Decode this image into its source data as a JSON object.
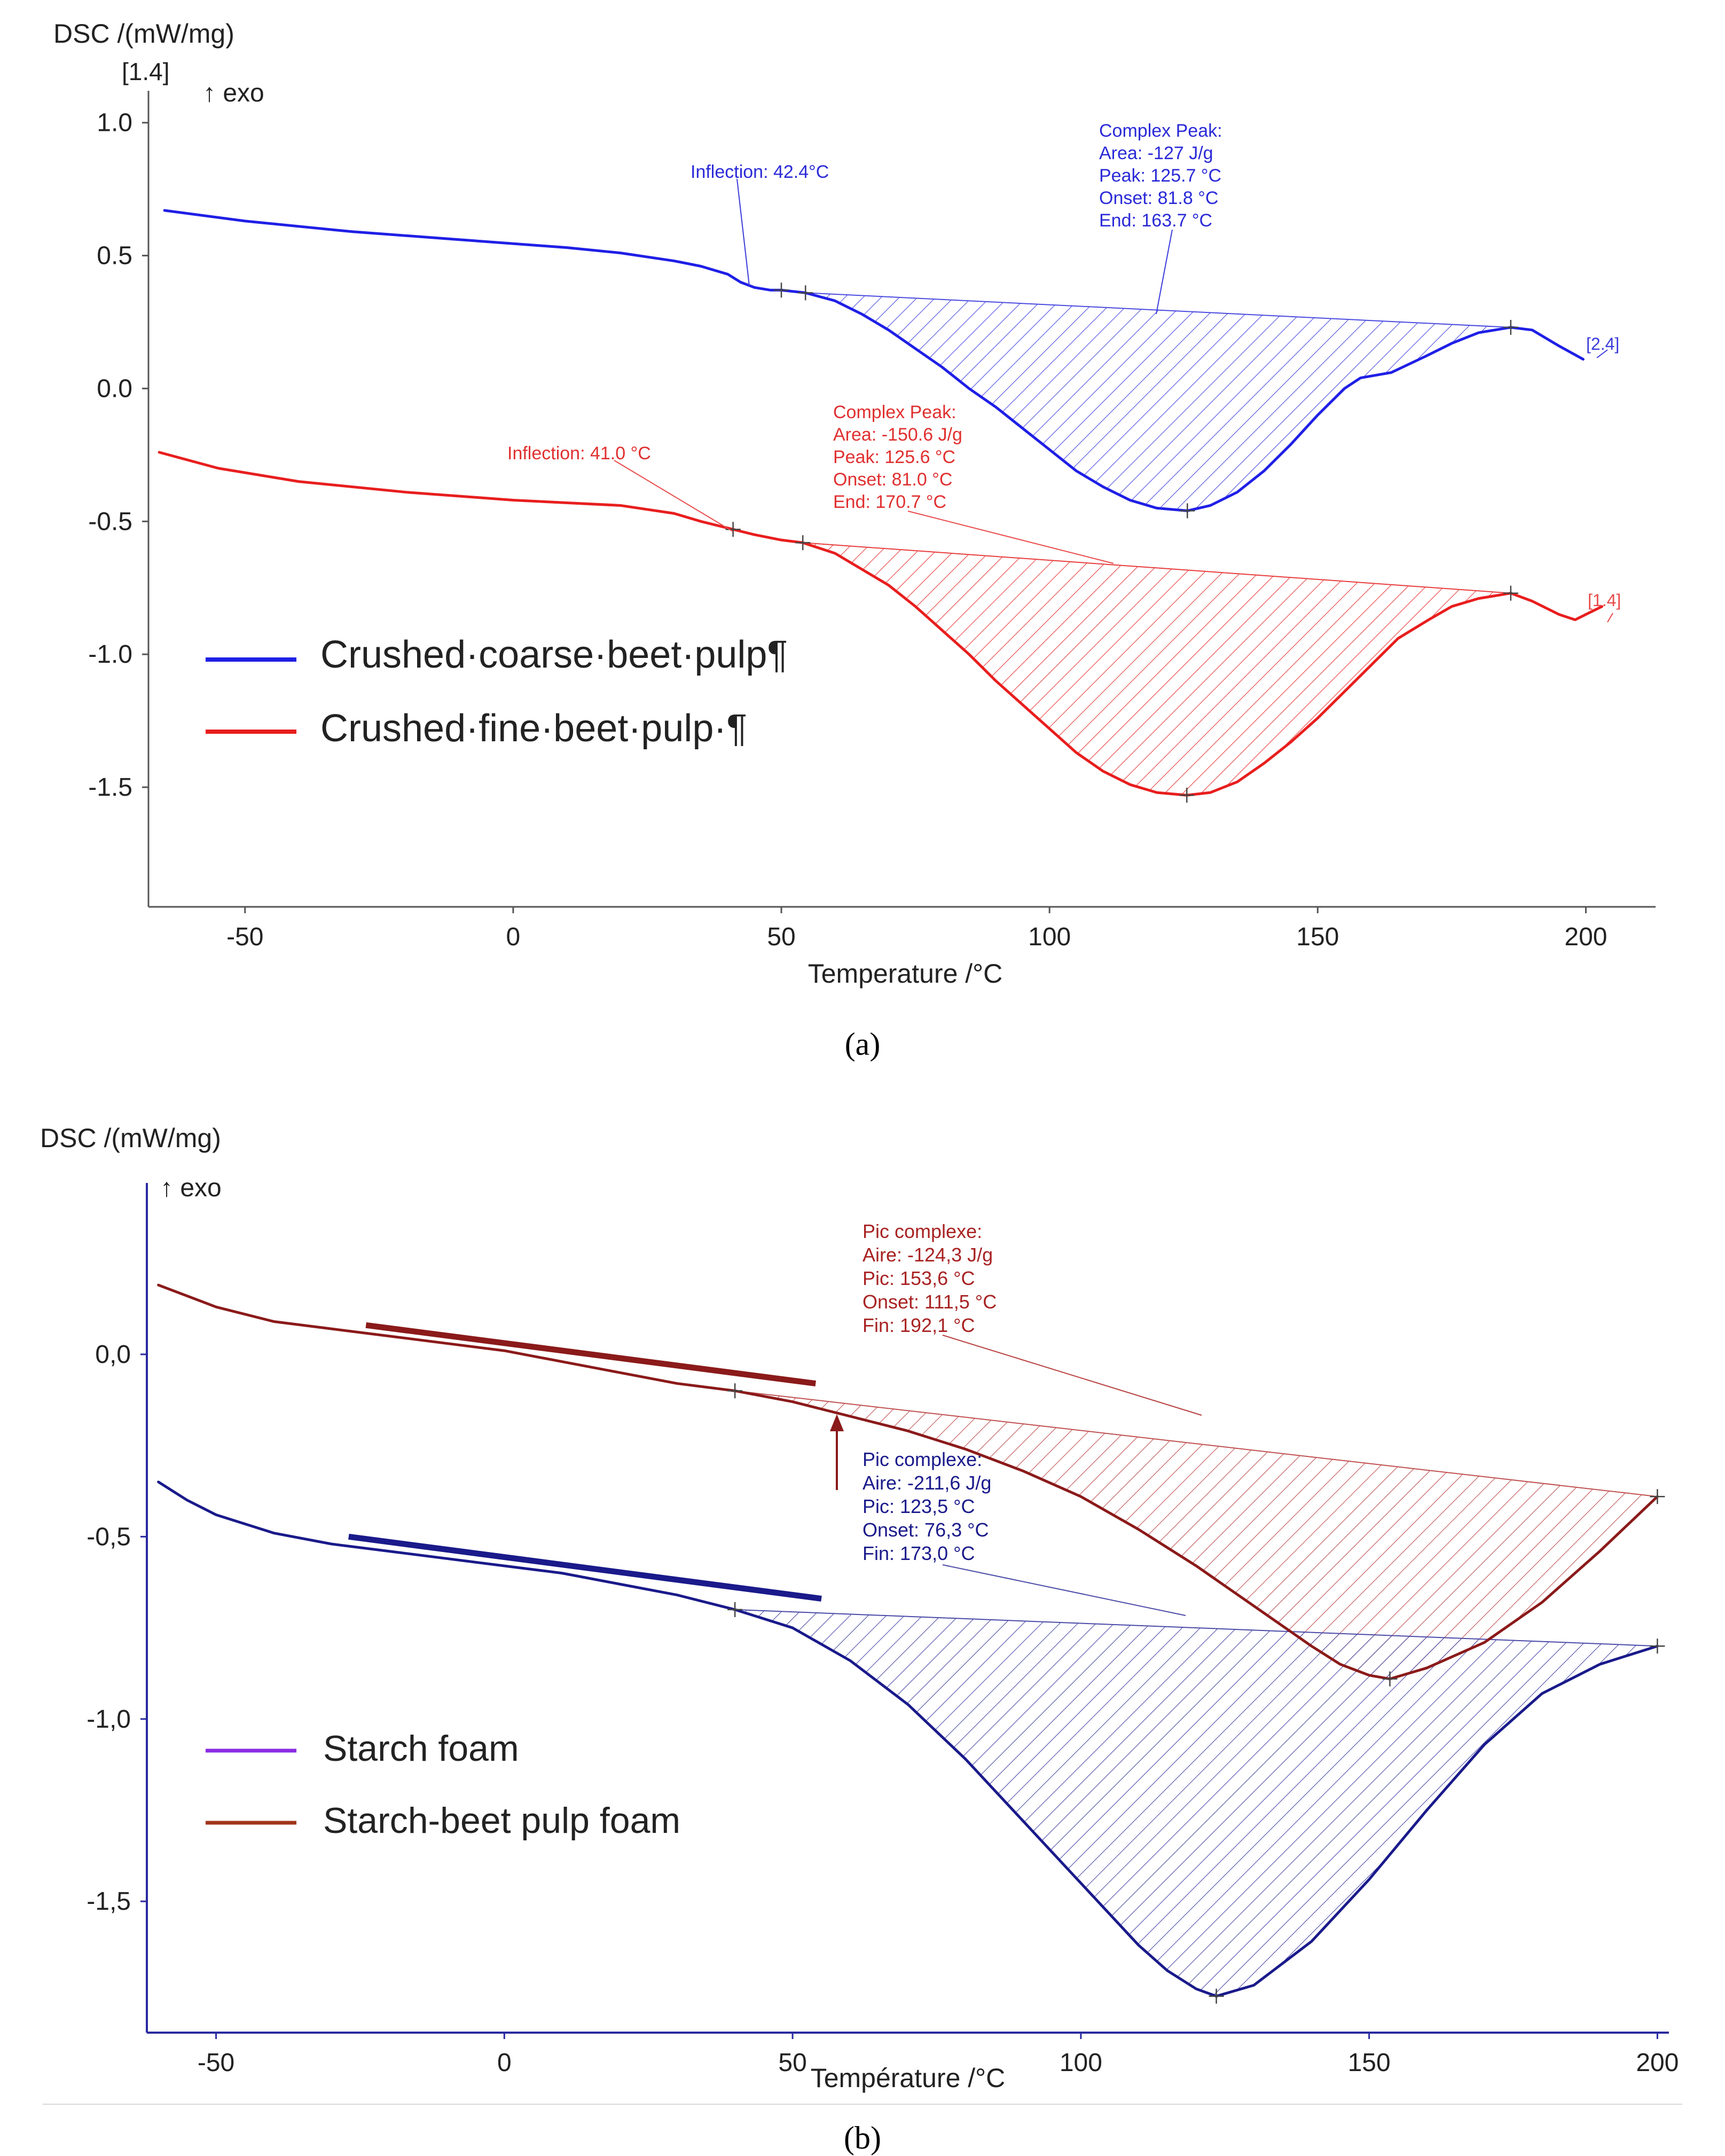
{
  "chart_data": [
    {
      "id": "a",
      "type": "line",
      "panel_label": "(a)",
      "ylabel": "DSC /(mW/mg)",
      "ylabel_sub": "[1.4]",
      "exo_label": "↑ exo",
      "xlabel": "Temperature /°C",
      "xlim": [
        -68,
        213
      ],
      "ylim": [
        -1.95,
        1.12
      ],
      "x_ticks": [
        -50,
        0,
        50,
        100,
        150,
        200
      ],
      "x_tick_labels": [
        "-50",
        "0",
        "50",
        "100",
        "150",
        "200"
      ],
      "y_ticks": [
        1.0,
        0.5,
        0.0,
        -0.5,
        -1.0,
        -1.5
      ],
      "y_tick_labels": [
        "1.0",
        "0.5",
        "0.0",
        "-0.5",
        "-1.0",
        "-1.5"
      ],
      "legend": {
        "position": "bottom-left",
        "entries": [
          "Crushed·coarse·beet·pulp¶",
          "Crushed·fine·beet·pulp·¶"
        ]
      },
      "series": [
        {
          "name": "Crushed coarse beet pulp",
          "color": "#1f1fe6",
          "hatch_color": "#4a4ae0",
          "segment_label": "[2.4]",
          "x": [
            -65,
            -50,
            -30,
            -10,
            10,
            20,
            30,
            35,
            40,
            42.4,
            45,
            48,
            50,
            54.5,
            60,
            65,
            70,
            75,
            80,
            85,
            90,
            95,
            100,
            105,
            110,
            115,
            120,
            125.7,
            130,
            135,
            140,
            145,
            150,
            155,
            158,
            163.7,
            170,
            175,
            180,
            186,
            190,
            195,
            199.5
          ],
          "y": [
            0.67,
            0.63,
            0.59,
            0.56,
            0.53,
            0.51,
            0.48,
            0.46,
            0.43,
            0.4,
            0.38,
            0.37,
            0.37,
            0.36,
            0.33,
            0.28,
            0.22,
            0.15,
            0.08,
            0.0,
            -0.07,
            -0.15,
            -0.23,
            -0.31,
            -0.37,
            -0.42,
            -0.45,
            -0.46,
            -0.44,
            -0.39,
            -0.31,
            -0.21,
            -0.1,
            0.0,
            0.04,
            0.06,
            0.12,
            0.17,
            0.21,
            0.23,
            0.22,
            0.16,
            0.11
          ],
          "baseline": {
            "x": [
              54.5,
              186
            ],
            "y": [
              0.36,
              0.23
            ]
          },
          "markers": [
            {
              "x": 50,
              "y": 0.37
            },
            {
              "x": 54.5,
              "y": 0.36
            },
            {
              "x": 125.7,
              "y": -0.46
            },
            {
              "x": 186,
              "y": 0.23
            }
          ],
          "annotations": [
            {
              "lines": [
                "Inflection: 42.4°C"
              ],
              "x": 42.4
            },
            {
              "lines": [
                "Complex Peak:",
                "Area:   -127 J/g",
                "Peak:   125.7 °C",
                "Onset:   81.8 °C",
                "End:     163.7 °C"
              ]
            }
          ]
        },
        {
          "name": "Crushed fine beet pulp",
          "color": "#e81e1e",
          "hatch_color": "#e83c3c",
          "segment_label": "[1.4]",
          "x": [
            -66,
            -55,
            -40,
            -20,
            0,
            10,
            20,
            30,
            35,
            41,
            45,
            50,
            54,
            60,
            65,
            70,
            75,
            80,
            85,
            90,
            95,
            100,
            105,
            110,
            115,
            120,
            125.6,
            130,
            135,
            140,
            145,
            150,
            155,
            160,
            165,
            170.7,
            175,
            180,
            186,
            190,
            195,
            198,
            203
          ],
          "y": [
            -0.24,
            -0.3,
            -0.35,
            -0.39,
            -0.42,
            -0.43,
            -0.44,
            -0.47,
            -0.5,
            -0.53,
            -0.55,
            -0.57,
            -0.58,
            -0.62,
            -0.68,
            -0.74,
            -0.82,
            -0.91,
            -1.0,
            -1.1,
            -1.19,
            -1.28,
            -1.37,
            -1.44,
            -1.49,
            -1.52,
            -1.53,
            -1.52,
            -1.48,
            -1.41,
            -1.33,
            -1.24,
            -1.14,
            -1.04,
            -0.94,
            -0.87,
            -0.82,
            -0.79,
            -0.77,
            -0.8,
            -0.85,
            -0.87,
            -0.82
          ],
          "baseline": {
            "x": [
              54,
              186
            ],
            "y": [
              -0.58,
              -0.77
            ]
          },
          "markers": [
            {
              "x": 41,
              "y": -0.53
            },
            {
              "x": 54,
              "y": -0.58
            },
            {
              "x": 125.6,
              "y": -1.53
            },
            {
              "x": 186,
              "y": -0.77
            }
          ],
          "annotations": [
            {
              "lines": [
                "Inflection: 41.0 °C"
              ],
              "x": 41.0
            },
            {
              "lines": [
                "Complex Peak:",
                "Area:   -150.6 J/g",
                "Peak:    125.6 °C",
                "Onset:    81.0 °C",
                "End:      170.7 °C"
              ]
            }
          ]
        }
      ]
    },
    {
      "id": "b",
      "type": "line",
      "panel_label": "(b)",
      "ylabel": "DSC /(mW/mg)",
      "exo_label": "↑ exo",
      "xlabel": "Température /°C",
      "xlim": [
        -62,
        202
      ],
      "ylim": [
        -1.86,
        0.47
      ],
      "x_ticks": [
        -50,
        0,
        50,
        100,
        150,
        200
      ],
      "x_tick_labels": [
        "-50",
        "0",
        "50",
        "100",
        "150",
        "200"
      ],
      "y_ticks": [
        0.0,
        -0.5,
        -1.0,
        -1.5
      ],
      "y_tick_labels": [
        "0,0",
        "-0,5",
        "-1,0",
        "-1,5"
      ],
      "legend": {
        "position": "bottom-left",
        "entries": [
          "Starch foam",
          "Starch-beet pulp foam"
        ],
        "colors": [
          "#8a2be2",
          "#a0341a"
        ]
      },
      "series": [
        {
          "name": "Starch-beet pulp foam",
          "color": "#8b1a1a",
          "hatch_color": "#c05050",
          "x": [
            -60,
            -50,
            -40,
            -30,
            -20,
            -10,
            0,
            10,
            20,
            30,
            40,
            50,
            60,
            70,
            80,
            90,
            100,
            110,
            120,
            130,
            140,
            145,
            150,
            153.6,
            160,
            170,
            180,
            190,
            200
          ],
          "y": [
            0.19,
            0.13,
            0.09,
            0.07,
            0.05,
            0.03,
            0.01,
            -0.02,
            -0.05,
            -0.08,
            -0.1,
            -0.13,
            -0.17,
            -0.21,
            -0.26,
            -0.32,
            -0.39,
            -0.48,
            -0.58,
            -0.69,
            -0.8,
            -0.85,
            -0.88,
            -0.89,
            -0.86,
            -0.79,
            -0.68,
            -0.54,
            -0.39
          ],
          "baseline": {
            "x": [
              40,
              200
            ],
            "y": [
              -0.1,
              -0.39
            ]
          },
          "markers": [
            {
              "x": 40,
              "y": -0.1
            },
            {
              "x": 153.6,
              "y": -0.89
            },
            {
              "x": 200,
              "y": -0.39
            }
          ],
          "tangent": {
            "x": [
              -24,
              54
            ],
            "y": [
              0.08,
              -0.08
            ]
          },
          "arrow_at_x": 57,
          "annotations": [
            {
              "lines": [
                "Pic complexe:",
                "Aire:      -124,3 J/g",
                "Pic:         153,6 °C",
                "Onset:    111,5 °C",
                "Fin:         192,1 °C"
              ]
            }
          ]
        },
        {
          "name": "Starch foam",
          "color": "#1a1a8b",
          "hatch_color": "#4a4aa8",
          "x": [
            -60,
            -55,
            -50,
            -40,
            -30,
            -20,
            -10,
            0,
            10,
            20,
            30,
            40,
            50,
            60,
            70,
            80,
            90,
            100,
            110,
            115,
            120,
            123.5,
            130,
            140,
            150,
            160,
            170,
            180,
            190,
            200
          ],
          "y": [
            -0.35,
            -0.4,
            -0.44,
            -0.49,
            -0.52,
            -0.54,
            -0.56,
            -0.58,
            -0.6,
            -0.63,
            -0.66,
            -0.7,
            -0.75,
            -0.84,
            -0.96,
            -1.11,
            -1.28,
            -1.45,
            -1.62,
            -1.69,
            -1.74,
            -1.76,
            -1.73,
            -1.61,
            -1.44,
            -1.25,
            -1.07,
            -0.93,
            -0.85,
            -0.8
          ],
          "baseline": {
            "x": [
              40,
              200
            ],
            "y": [
              -0.7,
              -0.8
            ]
          },
          "markers": [
            {
              "x": 40,
              "y": -0.7
            },
            {
              "x": 123.5,
              "y": -1.76
            },
            {
              "x": 200,
              "y": -0.8
            }
          ],
          "tangent": {
            "x": [
              -27,
              55
            ],
            "y": [
              -0.5,
              -0.67
            ]
          },
          "annotations": [
            {
              "lines": [
                "Pic complexe:",
                "Aire:      -211,6 J/g",
                "Pic:         123,5 °C",
                "Onset:    76,3 °C",
                "Fin:         173,0 °C"
              ]
            }
          ]
        }
      ]
    }
  ]
}
